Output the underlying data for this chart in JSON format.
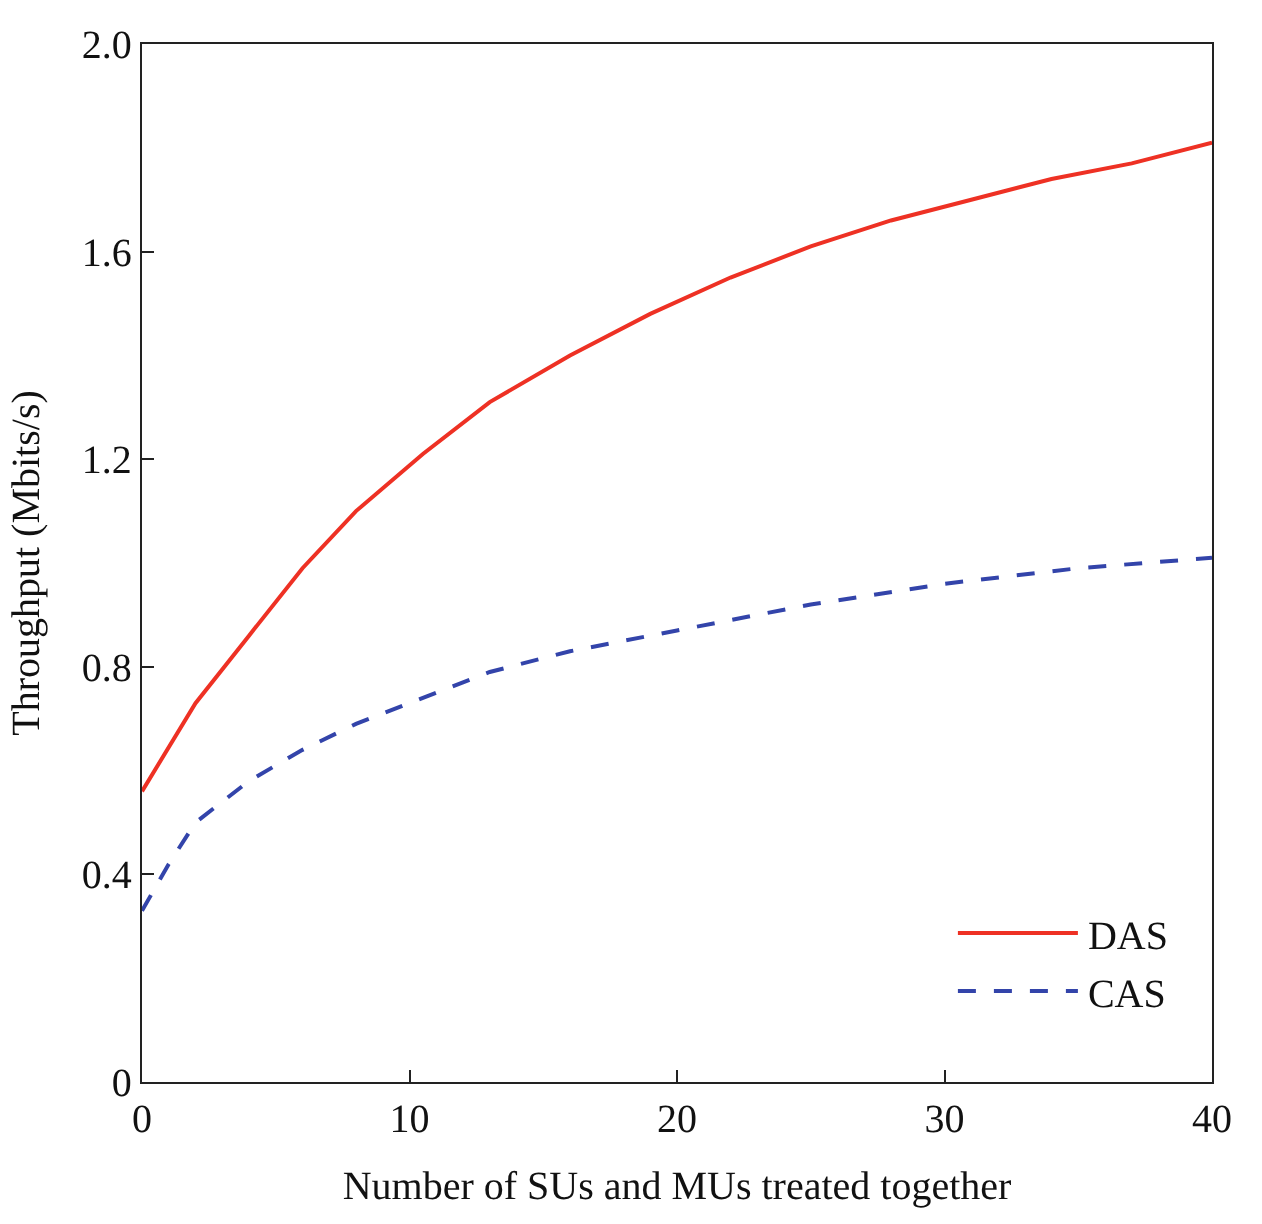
{
  "chart_data": {
    "type": "line",
    "xlabel": "Number of SUs and MUs treated together",
    "ylabel": "Throughput (Mbits/s)",
    "xlim": [
      0,
      40
    ],
    "xticks": [
      0,
      10,
      20,
      30,
      40
    ],
    "ylim": [
      0,
      2.0
    ],
    "yticks": [
      0,
      0.4,
      0.8,
      1.2,
      {
        "value": 1.6,
        "label": "1.6"
      },
      {
        "value": 2.0,
        "label": "2.0"
      }
    ],
    "legend": "bottom right",
    "marker": "none",
    "series": [
      {
        "name": "DAS",
        "color": "#ee3124",
        "line_style": "solid",
        "x": [
          0,
          2,
          4,
          6,
          8,
          10.5,
          13,
          16,
          19,
          22,
          25,
          28,
          31,
          34,
          37,
          40
        ],
        "values": [
          0.56,
          0.73,
          0.86,
          0.99,
          1.1,
          1.21,
          1.31,
          1.4,
          1.48,
          1.55,
          1.61,
          1.66,
          1.7,
          1.74,
          1.77,
          1.81
        ]
      },
      {
        "name": "CAS",
        "color": "#3344aa",
        "line_style": "dashed",
        "x": [
          0,
          1,
          2,
          4,
          6,
          8,
          10,
          13,
          16,
          20,
          25,
          30,
          35,
          40
        ],
        "values": [
          0.33,
          0.42,
          0.5,
          0.58,
          0.64,
          0.69,
          0.73,
          0.79,
          0.83,
          0.87,
          0.92,
          0.96,
          0.99,
          1.01
        ]
      }
    ]
  }
}
